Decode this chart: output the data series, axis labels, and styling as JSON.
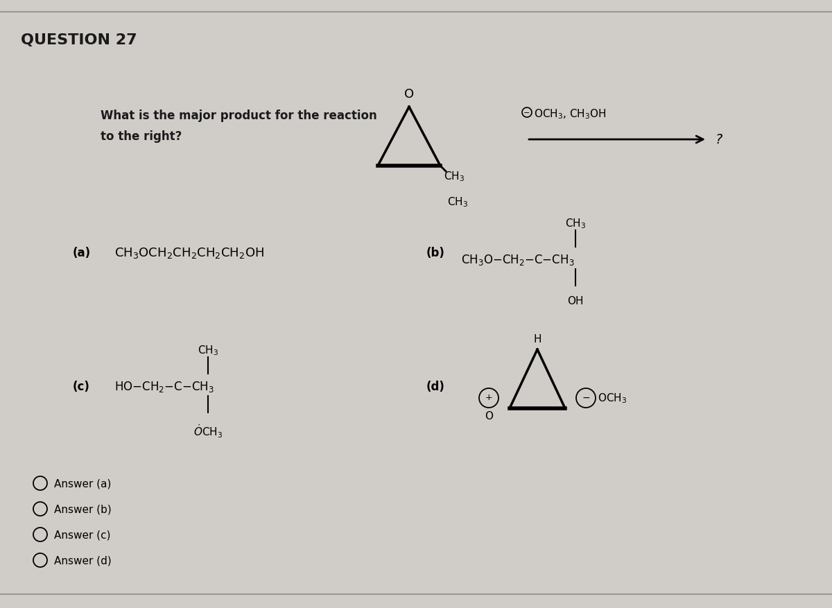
{
  "title": "QUESTION 27",
  "bg_color": "#d0ccc8",
  "text_color": "#1a1a1a",
  "question_text_line1": "What is the major product for the reaction",
  "question_text_line2": "to the right?",
  "choices": [
    "Answer (a)",
    "Answer (b)",
    "Answer (c)",
    "Answer (d)"
  ],
  "font_size_title": 16,
  "font_size_question": 12,
  "font_size_formula": 13,
  "font_size_small": 10
}
